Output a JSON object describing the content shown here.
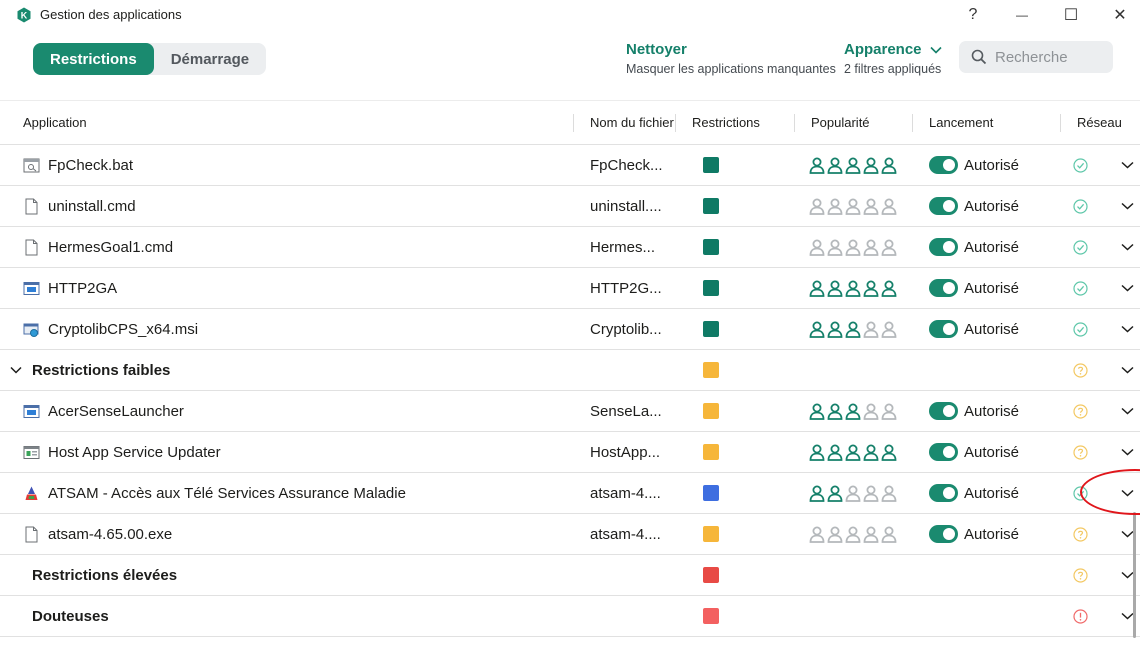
{
  "window": {
    "title": "Gestion des applications",
    "logo_letter": "K",
    "help": "?",
    "minimize": "—",
    "maximize": "☐",
    "close": "✕"
  },
  "toolbar": {
    "tabs": [
      {
        "label": "Restrictions",
        "active": true
      },
      {
        "label": "Démarrage",
        "active": false
      }
    ],
    "clean": {
      "title": "Nettoyer",
      "subtitle": "Masquer les applications manquantes"
    },
    "appearance": {
      "title": "Apparence",
      "subtitle": "2 filtres appliqués"
    },
    "search": {
      "placeholder": "Recherche",
      "value": ""
    }
  },
  "columns": {
    "application": "Application",
    "filename": "Nom du fichier",
    "restrictions": "Restrictions",
    "popularity": "Popularité",
    "launch": "Lancement",
    "network": "Réseau"
  },
  "colors": {
    "accent": "#1a8a6f",
    "trusted": "#0f7a65",
    "weak": "#f6b63a",
    "atsam": "#3e6ee0",
    "high": "#e84a45",
    "doubtful": "#f36060",
    "person_on": "#15806a",
    "person_off": "#b4b8bb"
  },
  "rows": [
    {
      "type": "app",
      "name": "FpCheck.bat",
      "filename": "FpCheck...",
      "icon": "batch-file-icon",
      "restriction": "trusted",
      "popularity": 5,
      "launch": "Autorisé",
      "network": "ok"
    },
    {
      "type": "app",
      "name": "uninstall.cmd",
      "filename": "uninstall....",
      "icon": "document-icon",
      "restriction": "trusted",
      "popularity": 0,
      "launch": "Autorisé",
      "network": "ok"
    },
    {
      "type": "app",
      "name": "HermesGoal1.cmd",
      "filename": "Hermes...",
      "icon": "document-icon",
      "restriction": "trusted",
      "popularity": 0,
      "launch": "Autorisé",
      "network": "ok"
    },
    {
      "type": "app",
      "name": "HTTP2GA",
      "filename": "HTTP2G...",
      "icon": "window-app-icon",
      "restriction": "trusted",
      "popularity": 5,
      "launch": "Autorisé",
      "network": "ok"
    },
    {
      "type": "app",
      "name": "CryptolibCPS_x64.msi",
      "filename": "Cryptolib...",
      "icon": "installer-icon",
      "restriction": "trusted",
      "popularity": 3,
      "launch": "Autorisé",
      "network": "ok"
    },
    {
      "type": "group",
      "name": "Restrictions faibles",
      "restriction": "weak",
      "network": "unknown"
    },
    {
      "type": "app",
      "name": "AcerSenseLauncher",
      "filename": "SenseLa...",
      "icon": "window-app-icon",
      "restriction": "weak",
      "popularity": 3,
      "launch": "Autorisé",
      "network": "unknown"
    },
    {
      "type": "app",
      "name": "Host App Service Updater",
      "filename": "HostApp...",
      "icon": "service-app-icon",
      "restriction": "weak",
      "popularity": 5,
      "launch": "Autorisé",
      "network": "unknown"
    },
    {
      "type": "app",
      "name": "ATSAM - Accès aux Télé Services Assurance Maladie",
      "filename": "atsam-4....",
      "icon": "atsam-logo-icon",
      "restriction": "atsam",
      "popularity": 2,
      "launch": "Autorisé",
      "network": "ok"
    },
    {
      "type": "app",
      "name": "atsam-4.65.00.exe",
      "filename": "atsam-4....",
      "icon": "document-icon",
      "restriction": "weak",
      "popularity": 0,
      "launch": "Autorisé",
      "network": "unknown"
    },
    {
      "type": "group-closed",
      "name": "Restrictions élevées",
      "restriction": "high",
      "network": "unknown"
    },
    {
      "type": "group-closed",
      "name": "Douteuses",
      "restriction": "doubtful",
      "network": "alert"
    }
  ]
}
